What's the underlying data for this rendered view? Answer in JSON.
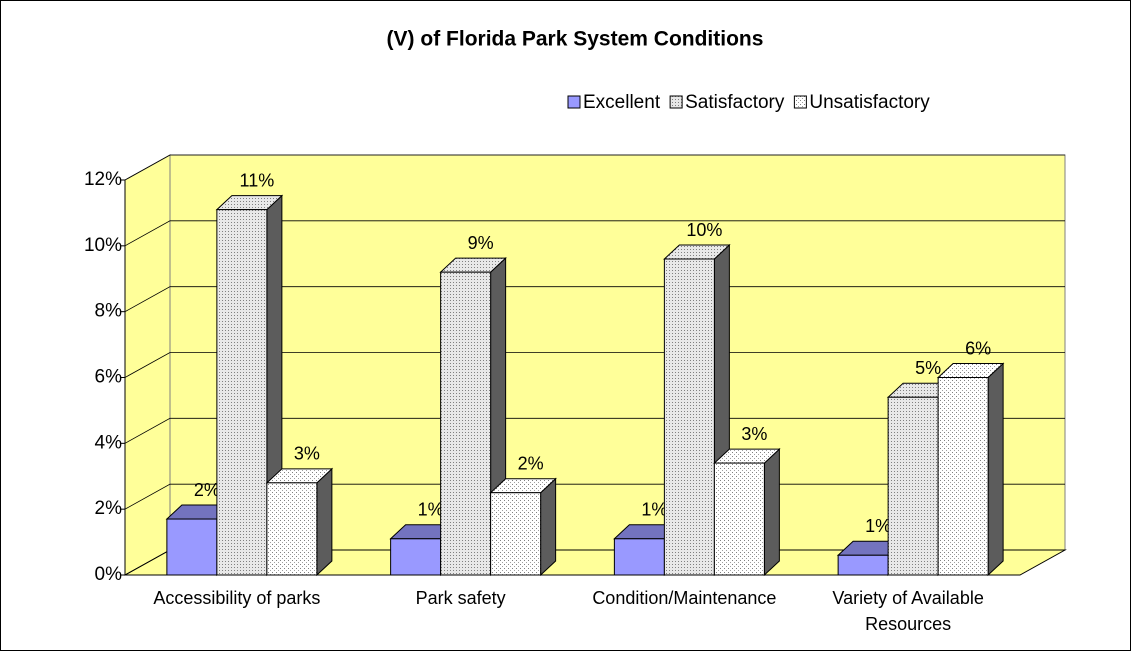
{
  "chart_data": {
    "type": "bar3d",
    "title": "(V) of Florida Park System Conditions",
    "categories": [
      "Accessibility of parks",
      "Park safety",
      "Condition/Maintenance",
      "Variety of Available Resources"
    ],
    "series": [
      {
        "name": "Excellent",
        "color": "#9999ff",
        "pattern": "solid",
        "values": [
          1.7,
          1.1,
          1.1,
          0.6
        ],
        "value_labels": [
          "2%",
          "1%",
          "1%",
          "1%"
        ]
      },
      {
        "name": "Satisfactory",
        "color": "#c0c0c0",
        "pattern": "dense-dots",
        "values": [
          11.1,
          9.2,
          9.6,
          5.4
        ],
        "value_labels": [
          "11%",
          "9%",
          "10%",
          "5%"
        ]
      },
      {
        "name": "Unsatisfactory",
        "color": "#ffffff",
        "pattern": "sparse-dots",
        "values": [
          2.8,
          2.5,
          3.4,
          6.0
        ],
        "value_labels": [
          "3%",
          "2%",
          "3%",
          "6%"
        ]
      }
    ],
    "ylim": [
      0,
      12
    ],
    "yticks": [
      {
        "value": 0,
        "label": "0%"
      },
      {
        "value": 2,
        "label": "2%"
      },
      {
        "value": 4,
        "label": "4%"
      },
      {
        "value": 6,
        "label": "6%"
      },
      {
        "value": 8,
        "label": "8%"
      },
      {
        "value": 10,
        "label": "10%"
      },
      {
        "value": 12,
        "label": "12%"
      }
    ],
    "grid": true,
    "wall_color": "#ffff99",
    "legend": "top-right"
  }
}
